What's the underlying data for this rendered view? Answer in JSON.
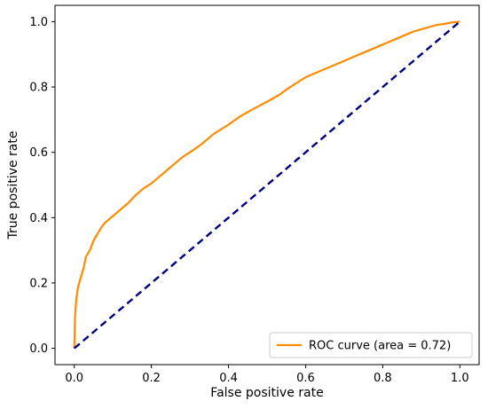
{
  "chart_data": {
    "type": "line",
    "title": "",
    "xlabel": "False positive rate",
    "ylabel": "True positive rate",
    "xlim": [
      -0.05,
      1.05
    ],
    "ylim": [
      -0.05,
      1.05
    ],
    "xticks": [
      0.0,
      0.2,
      0.4,
      0.6,
      0.8,
      1.0
    ],
    "yticks": [
      0.0,
      0.2,
      0.4,
      0.6,
      0.8,
      1.0
    ],
    "xtick_labels": [
      "0.0",
      "0.2",
      "0.4",
      "0.6",
      "0.8",
      "1.0"
    ],
    "ytick_labels": [
      "0.0",
      "0.2",
      "0.4",
      "0.6",
      "0.8",
      "1.0"
    ],
    "grid": false,
    "legend_position": "lower-right",
    "series": [
      {
        "name": "ROC curve (area = 0.72)",
        "color": "#ff8c00",
        "style": "solid",
        "x": [
          0.0,
          0.002,
          0.005,
          0.01,
          0.015,
          0.02,
          0.025,
          0.03,
          0.04,
          0.05,
          0.06,
          0.07,
          0.08,
          0.1,
          0.12,
          0.14,
          0.16,
          0.18,
          0.2,
          0.22,
          0.25,
          0.28,
          0.3,
          0.33,
          0.36,
          0.4,
          0.43,
          0.46,
          0.5,
          0.53,
          0.56,
          0.6,
          0.64,
          0.68,
          0.72,
          0.76,
          0.8,
          0.84,
          0.88,
          0.91,
          0.94,
          0.96,
          0.98,
          1.0
        ],
        "y": [
          0.0,
          0.1,
          0.15,
          0.19,
          0.21,
          0.23,
          0.25,
          0.28,
          0.3,
          0.33,
          0.35,
          0.37,
          0.385,
          0.405,
          0.425,
          0.445,
          0.47,
          0.49,
          0.505,
          0.525,
          0.555,
          0.585,
          0.6,
          0.625,
          0.655,
          0.685,
          0.71,
          0.73,
          0.755,
          0.775,
          0.8,
          0.83,
          0.85,
          0.87,
          0.89,
          0.91,
          0.93,
          0.95,
          0.97,
          0.98,
          0.99,
          0.993,
          0.998,
          1.0
        ]
      },
      {
        "name": "",
        "color": "#000080",
        "style": "dashed",
        "x": [
          0.0,
          1.0
        ],
        "y": [
          0.0,
          1.0
        ]
      }
    ]
  }
}
